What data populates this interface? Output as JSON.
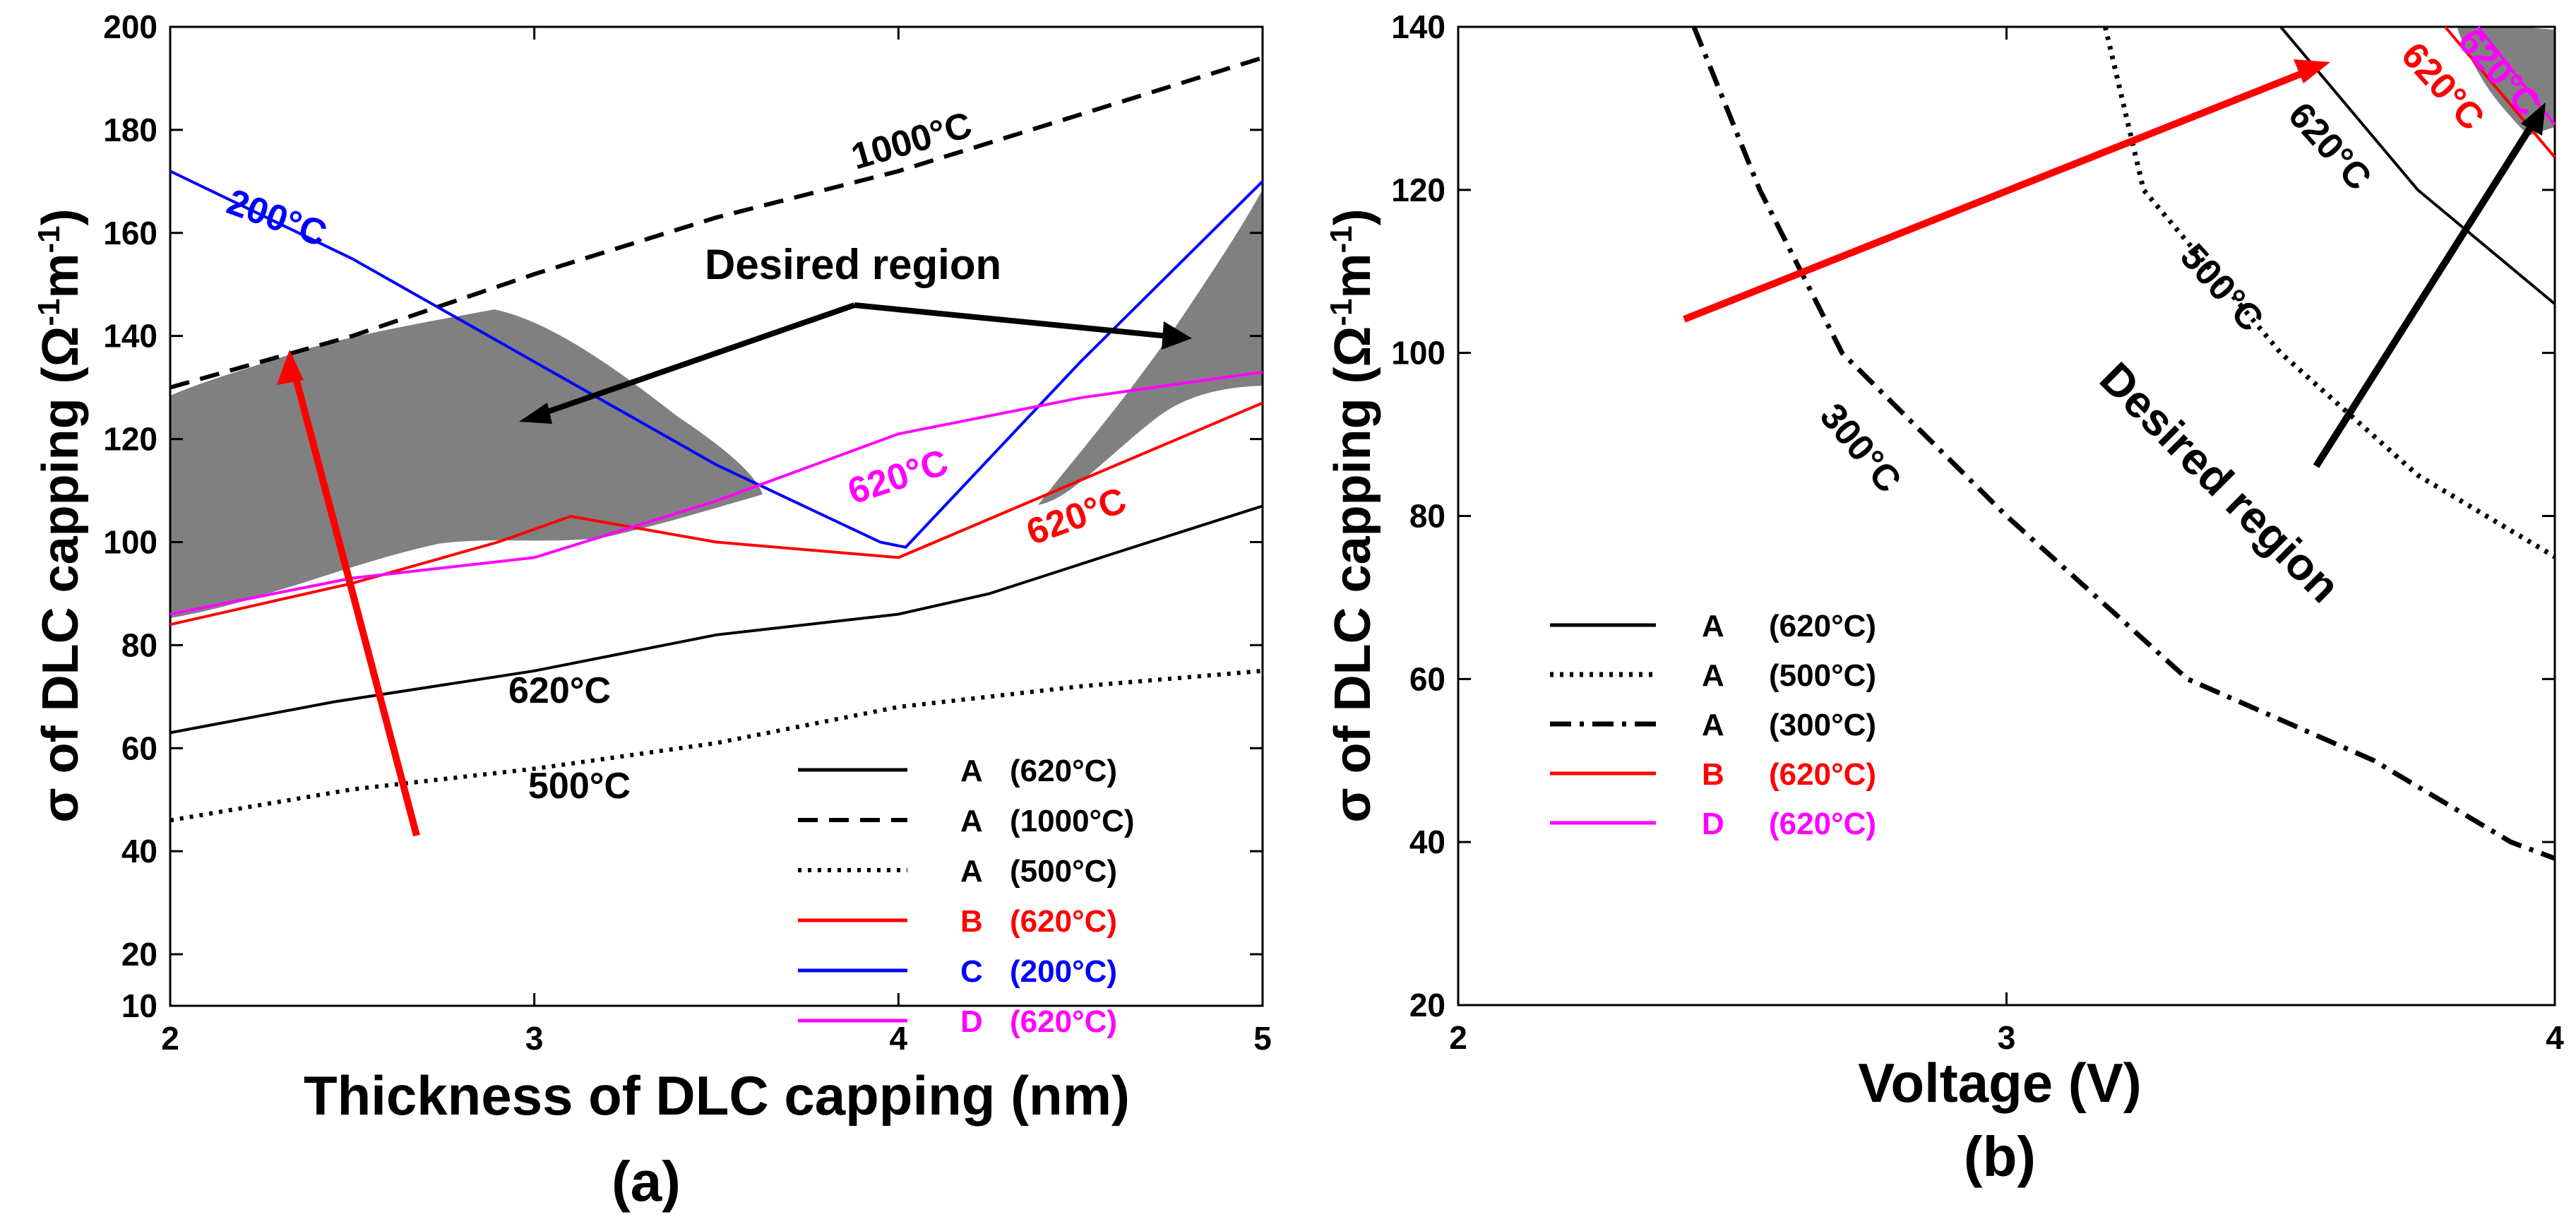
{
  "chart_data": [
    {
      "type": "line",
      "panel_label": "(a)",
      "xlabel": "Thickness of DLC capping (nm)",
      "ylabel": "σ of DLC capping (Ω⁻¹m⁻¹)",
      "ylabel_main": "σ of DLC capping (Ω",
      "ylabel_sup1": "-1",
      "ylabel_mid": "m",
      "ylabel_sup2": "-1",
      "ylabel_end": ")",
      "xlim": [
        2,
        5
      ],
      "ylim": [
        10,
        200
      ],
      "xticks": [
        2,
        3,
        4,
        5
      ],
      "yticks": [
        10,
        20,
        40,
        60,
        80,
        100,
        120,
        140,
        160,
        180,
        200
      ],
      "series": [
        {
          "name": "A (620°C)",
          "letter": "A",
          "temp": "(620°C)",
          "color": "#000000",
          "dash": "solid",
          "x": [
            2,
            2.45,
            3,
            3.5,
            4,
            4.25,
            4.6,
            5
          ],
          "y": [
            63,
            69,
            75,
            82,
            86,
            90,
            98,
            107
          ]
        },
        {
          "name": "A (1000°C)",
          "letter": "A",
          "temp": "(1000°C)",
          "color": "#000000",
          "dash": "dashed",
          "x": [
            2,
            2.5,
            3,
            3.5,
            4,
            4.5,
            5
          ],
          "y": [
            130,
            140,
            152,
            163,
            172,
            183,
            194
          ]
        },
        {
          "name": "A (500°C)",
          "letter": "A",
          "temp": "(500°C)",
          "color": "#000000",
          "dash": "dotted",
          "x": [
            2,
            2.5,
            3,
            3.5,
            4,
            4.5,
            5
          ],
          "y": [
            46,
            52,
            56,
            61,
            68,
            72,
            75
          ]
        },
        {
          "name": "B (620°C)",
          "letter": "B",
          "temp": "(620°C)",
          "color": "#ff0000",
          "dash": "solid",
          "x": [
            2,
            2.5,
            2.9,
            3.1,
            3.5,
            4,
            4.1,
            4.5,
            5
          ],
          "y": [
            84,
            92,
            100,
            105,
            100,
            97,
            100,
            112,
            127
          ]
        },
        {
          "name": "C (200°C)",
          "letter": "C",
          "temp": "(200°C)",
          "color": "#0000ff",
          "dash": "solid",
          "x": [
            2,
            2.5,
            3,
            3.5,
            3.95,
            4.02,
            4.5,
            5
          ],
          "y": [
            172,
            155,
            135,
            115,
            100,
            99,
            135,
            170
          ]
        },
        {
          "name": "D (620°C)",
          "letter": "D",
          "temp": "(620°C)",
          "color": "#ff00ff",
          "dash": "solid",
          "x": [
            2,
            2.5,
            3,
            3.5,
            4,
            4.5,
            5
          ],
          "y": [
            86,
            93,
            97,
            108,
            121,
            128,
            133
          ]
        }
      ],
      "annotations": {
        "desired_region": "Desired region",
        "label_200": "200°C",
        "label_1000": "1000°C",
        "label_620_magenta": "620°C",
        "label_620_red": "620°C",
        "label_620_black": "620°C",
        "label_500": "500°C"
      },
      "legend_position": "bottom-right"
    },
    {
      "type": "line",
      "panel_label": "(b)",
      "xlabel": "Voltage (V)",
      "ylabel": "σ of DLC capping (Ω⁻¹m⁻¹)",
      "ylabel_main": "σ of DLC capping (Ω",
      "ylabel_sup1": "-1",
      "ylabel_mid": "m",
      "ylabel_sup2": "-1",
      "ylabel_end": ")",
      "xlim": [
        2,
        4
      ],
      "ylim": [
        20,
        140
      ],
      "xticks": [
        2,
        3,
        4
      ],
      "yticks": [
        20,
        40,
        60,
        80,
        100,
        120,
        140
      ],
      "series": [
        {
          "name": "A (620°C)",
          "letter": "A",
          "temp": "(620°C)",
          "color": "#000000",
          "dash": "solid",
          "x": [
            3.5,
            3.75,
            4
          ],
          "y": [
            140,
            120,
            106
          ]
        },
        {
          "name": "A (500°C)",
          "letter": "A",
          "temp": "(500°C)",
          "color": "#000000",
          "dash": "dotted",
          "x": [
            3.18,
            3.25,
            3.5,
            3.75,
            4
          ],
          "y": [
            140,
            120,
            100,
            85,
            75
          ]
        },
        {
          "name": "A (300°C)",
          "letter": "A",
          "temp": "(300°C)",
          "color": "#000000",
          "dash": "dashdot",
          "x": [
            2.43,
            2.55,
            2.7,
            3,
            3.33,
            3.67,
            3.92,
            4
          ],
          "y": [
            140,
            120,
            100,
            80,
            60,
            50,
            40,
            38
          ]
        },
        {
          "name": "B (620°C)",
          "letter": "B",
          "temp": "(620°C)",
          "color": "#ff0000",
          "dash": "solid",
          "x": [
            3.8,
            4
          ],
          "y": [
            140,
            124
          ]
        },
        {
          "name": "D (620°C)",
          "letter": "D",
          "temp": "(620°C)",
          "color": "#ff00ff",
          "dash": "solid",
          "x": [
            3.86,
            4
          ],
          "y": [
            140,
            128
          ]
        }
      ],
      "annotations": {
        "desired_region": "Desired region",
        "label_620_black": "620°C",
        "label_620_red": "620°C",
        "label_620_magenta": "620°C",
        "label_500": "500°C",
        "label_300": "300°C"
      },
      "legend_position": "middle-left"
    }
  ]
}
